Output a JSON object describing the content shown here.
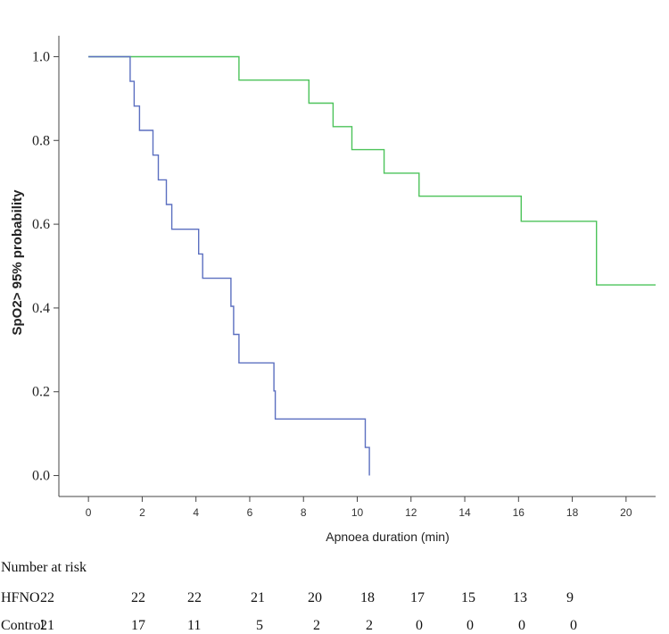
{
  "chart_data": {
    "type": "line",
    "step": true,
    "xlabel": "Apnoea duration (min)",
    "ylabel": "SpO2> 95% probability",
    "xlim": [
      -1.1,
      21.1
    ],
    "ylim": [
      -0.05,
      1.05
    ],
    "x_ticks": [
      "0",
      "2",
      "4",
      "6",
      "8",
      "10",
      "12",
      "14",
      "16",
      "18",
      "20"
    ],
    "y_ticks": [
      "0.0",
      "0.2",
      "0.4",
      "0.6",
      "0.8",
      "1.0"
    ],
    "grid": false,
    "series": [
      {
        "color": "#4CC35A",
        "points": [
          [
            0,
            1.0
          ],
          [
            5.6,
            1.0
          ],
          [
            5.6,
            0.944
          ],
          [
            8.2,
            0.944
          ],
          [
            8.2,
            0.889
          ],
          [
            9.1,
            0.889
          ],
          [
            9.1,
            0.833
          ],
          [
            9.8,
            0.833
          ],
          [
            9.8,
            0.778
          ],
          [
            11.0,
            0.778
          ],
          [
            11.0,
            0.722
          ],
          [
            12.3,
            0.722
          ],
          [
            12.3,
            0.667
          ],
          [
            16.1,
            0.667
          ],
          [
            16.1,
            0.607
          ],
          [
            18.9,
            0.607
          ],
          [
            18.9,
            0.455
          ],
          [
            21.1,
            0.455
          ]
        ]
      },
      {
        "color": "#5B6FC0",
        "points": [
          [
            0,
            1.0
          ],
          [
            1.55,
            1.0
          ],
          [
            1.55,
            0.941
          ],
          [
            1.7,
            0.941
          ],
          [
            1.7,
            0.882
          ],
          [
            1.9,
            0.882
          ],
          [
            1.9,
            0.824
          ],
          [
            2.4,
            0.824
          ],
          [
            2.4,
            0.765
          ],
          [
            2.6,
            0.765
          ],
          [
            2.6,
            0.706
          ],
          [
            2.9,
            0.706
          ],
          [
            2.9,
            0.647
          ],
          [
            3.1,
            0.647
          ],
          [
            3.1,
            0.588
          ],
          [
            4.1,
            0.588
          ],
          [
            4.1,
            0.529
          ],
          [
            4.25,
            0.529
          ],
          [
            4.25,
            0.471
          ],
          [
            5.3,
            0.471
          ],
          [
            5.3,
            0.404
          ],
          [
            5.4,
            0.404
          ],
          [
            5.4,
            0.337
          ],
          [
            5.6,
            0.337
          ],
          [
            5.6,
            0.269
          ],
          [
            6.9,
            0.269
          ],
          [
            6.9,
            0.202
          ],
          [
            6.95,
            0.202
          ],
          [
            6.95,
            0.135
          ],
          [
            10.3,
            0.135
          ],
          [
            10.3,
            0.067
          ],
          [
            10.45,
            0.067
          ],
          [
            10.45,
            0.0
          ]
        ]
      }
    ]
  },
  "risk_table": {
    "title": "Number at risk",
    "rows": [
      {
        "label": "HFNO",
        "values": [
          "22",
          "22",
          "22",
          "21",
          "20",
          "18",
          "17",
          "15",
          "13",
          "9"
        ]
      },
      {
        "label": "Control",
        "values": [
          "21",
          "17",
          "11",
          "5",
          "2",
          "2",
          "0",
          "0",
          "0",
          "0"
        ]
      }
    ]
  }
}
